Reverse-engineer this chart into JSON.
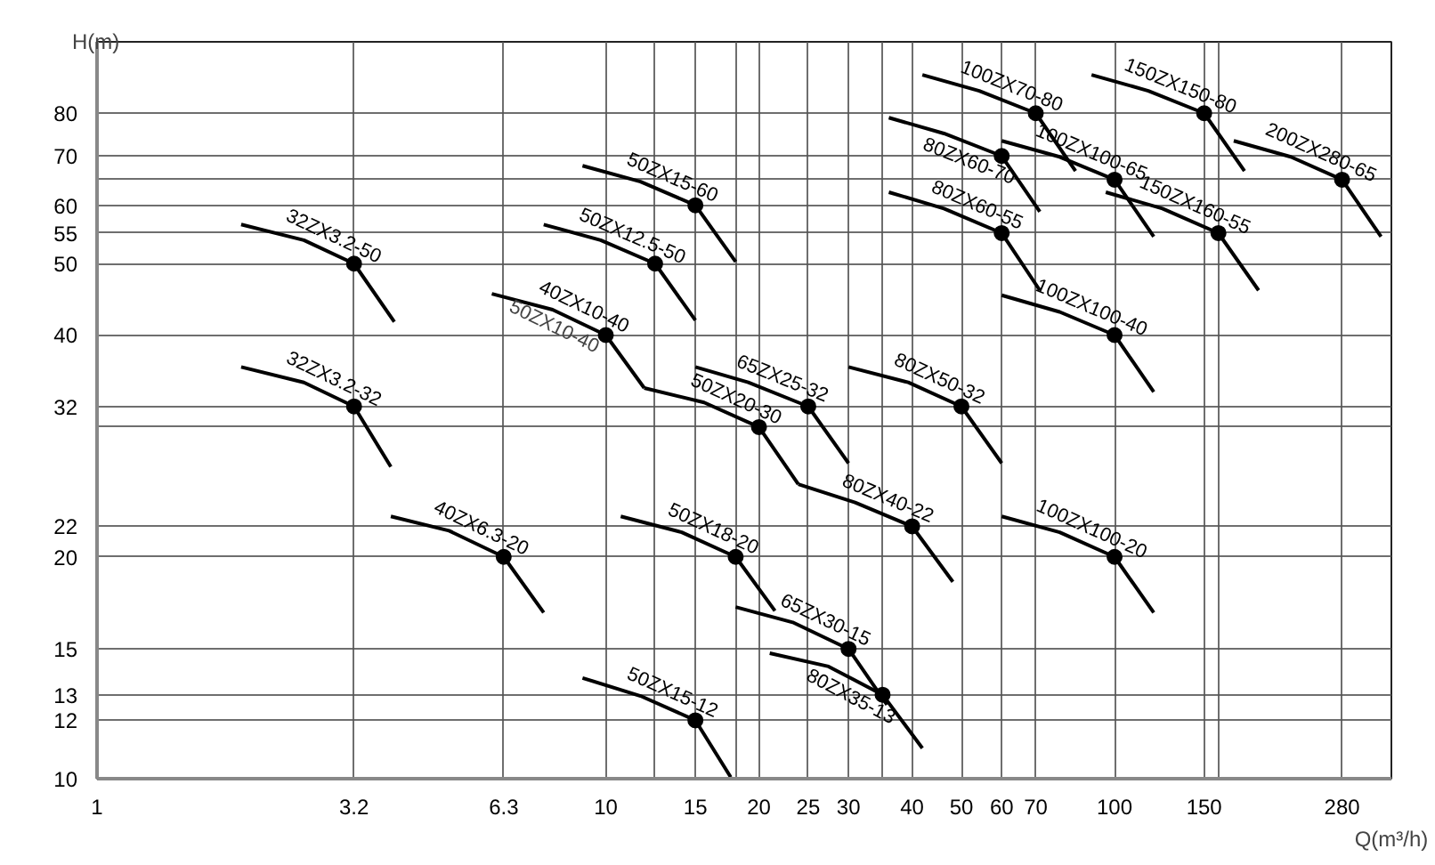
{
  "chart_data": {
    "type": "line",
    "xlabel": "Q(m³/h)",
    "ylabel": "H(m)",
    "log": "xy",
    "grid": true,
    "xlim": [
      1,
      350
    ],
    "ylim": [
      10,
      100
    ],
    "xticks": [
      1,
      3.2,
      6.3,
      10,
      {
        "value": 12.5,
        "label": null
      },
      15,
      {
        "value": 18,
        "label": null
      },
      20,
      25,
      30,
      {
        "value": 35,
        "label": null
      },
      40,
      50,
      60,
      70,
      100,
      150,
      {
        "value": 160,
        "label": null
      },
      280
    ],
    "yticks": [
      10,
      12,
      13,
      15,
      20,
      22,
      {
        "value": 30,
        "label": null
      },
      32,
      40,
      50,
      55,
      60,
      {
        "value": 65,
        "label": null
      },
      70,
      80
    ],
    "annotations": [
      {
        "text": "50ZX10-40",
        "x": 10,
        "y": 40
      }
    ],
    "series": [
      {
        "name": "32ZX3.2-50",
        "color": "#000000",
        "x": [
          1.92,
          2.55,
          3.2,
          3.84
        ],
        "values": [
          56.5,
          53.8,
          50,
          41.7
        ]
      },
      {
        "name": "32ZX3.2-32",
        "color": "#000000",
        "x": [
          1.92,
          2.55,
          3.2,
          3.78
        ],
        "values": [
          36.2,
          34.5,
          32,
          26.5
        ]
      },
      {
        "name": "40ZX6.3-20",
        "color": "#000000",
        "x": [
          3.78,
          4.92,
          6.3,
          7.55
        ],
        "values": [
          22.7,
          21.7,
          20,
          16.8
        ]
      },
      {
        "name": "50ZX15-12",
        "color": "#000000",
        "x": [
          9.0,
          11.7,
          15,
          17.6
        ],
        "values": [
          13.7,
          12.95,
          12,
          10.05
        ]
      },
      {
        "name": "50ZX18-20",
        "color": "#000000",
        "x": [
          10.7,
          14.1,
          18,
          21.5
        ],
        "values": [
          22.7,
          21.6,
          20,
          16.9
        ]
      },
      {
        "name": "65ZX30-15",
        "color": "#000000",
        "x": [
          18,
          23.3,
          30,
          35.7
        ],
        "values": [
          17.1,
          16.3,
          15,
          12.6
        ]
      },
      {
        "name": "80ZX35-13",
        "color": "#000000",
        "x": [
          21,
          27.4,
          35,
          41.9
        ],
        "values": [
          14.8,
          14.2,
          13,
          11.0
        ]
      },
      {
        "name": "40ZX10-40",
        "color": "#000000",
        "x": [
          5.97,
          7.86,
          10,
          11.9
        ],
        "values": [
          45.5,
          43.3,
          40,
          33.9
        ]
      },
      {
        "name": "50ZX20-30",
        "color": "#000000",
        "x": [
          11.9,
          15.6,
          20,
          23.9
        ],
        "values": [
          33.9,
          32.4,
          30,
          25.1
        ]
      },
      {
        "name": "80ZX40-22",
        "color": "#000000",
        "x": [
          23.9,
          30.9,
          40,
          48.1
        ],
        "values": [
          25.1,
          23.7,
          22,
          18.5
        ]
      },
      {
        "name": "65ZX25-32",
        "color": "#000000",
        "x": [
          15,
          19.05,
          25,
          30
        ],
        "values": [
          36.2,
          34.5,
          32,
          26.8
        ]
      },
      {
        "name": "80ZX50-32",
        "color": "#000000",
        "x": [
          30,
          39.3,
          50,
          60
        ],
        "values": [
          36.2,
          34.5,
          32,
          26.8
        ]
      },
      {
        "name": "50ZX12.5-50",
        "color": "#000000",
        "x": [
          7.55,
          9.77,
          12.5,
          15
        ],
        "values": [
          56.5,
          53.8,
          50,
          41.9
        ]
      },
      {
        "name": "50ZX15-60",
        "color": "#000000",
        "x": [
          9.0,
          11.7,
          15,
          18
        ],
        "values": [
          67.9,
          64.6,
          60,
          50.3
        ]
      },
      {
        "name": "100ZX70-80",
        "color": "#000000",
        "x": [
          41.9,
          54.2,
          70,
          83.8
        ],
        "values": [
          90.2,
          85.8,
          80,
          66.8
        ]
      },
      {
        "name": "80ZX60-70",
        "color": "#000000",
        "x": [
          36.0,
          46.2,
          60,
          71.3
        ],
        "values": [
          78.9,
          75.1,
          70,
          58.8
        ]
      },
      {
        "name": "100ZX100-65",
        "color": "#000000",
        "x": [
          60,
          78,
          100,
          119.4
        ],
        "values": [
          73.4,
          69.8,
          65,
          54.4
        ]
      },
      {
        "name": "150ZX150-80",
        "color": "#000000",
        "x": [
          90.1,
          116.5,
          150,
          180
        ],
        "values": [
          90.2,
          85.8,
          80,
          66.8
        ]
      },
      {
        "name": "200ZX280-65",
        "color": "#000000",
        "x": [
          171.5,
          222,
          280,
          334
        ],
        "values": [
          73.4,
          69.8,
          65,
          54.4
        ]
      },
      {
        "name": "80ZX60-55",
        "color": "#000000",
        "x": [
          36.0,
          46.2,
          60,
          71.3
        ],
        "values": [
          62.5,
          59.4,
          55,
          46.0
        ]
      },
      {
        "name": "150ZX160-55",
        "color": "#000000",
        "x": [
          96.1,
          124.2,
          160,
          191.9
        ],
        "values": [
          62.5,
          59.4,
          55,
          46.0
        ]
      },
      {
        "name": "100ZX100-40",
        "color": "#000000",
        "x": [
          60,
          78,
          100,
          119.4
        ],
        "values": [
          45.3,
          43.0,
          40,
          33.5
        ]
      },
      {
        "name": "100ZX100-20",
        "color": "#000000",
        "x": [
          60,
          78,
          100,
          119.4
        ],
        "values": [
          22.7,
          21.6,
          20,
          16.8
        ]
      },
      {
        "type": "scatter",
        "marker": "circle",
        "color": "#000000",
        "x": [
          3.2,
          3.2,
          6.3,
          15,
          18,
          30,
          35,
          10,
          20,
          40,
          25,
          50,
          12.5,
          15,
          70,
          60,
          100,
          150,
          280,
          60,
          160,
          100,
          100
        ],
        "values": [
          50,
          32,
          20,
          12,
          20,
          15,
          13,
          40,
          30,
          22,
          32,
          32,
          50,
          60,
          80,
          70,
          65,
          80,
          65,
          55,
          55,
          40,
          20
        ]
      }
    ]
  }
}
